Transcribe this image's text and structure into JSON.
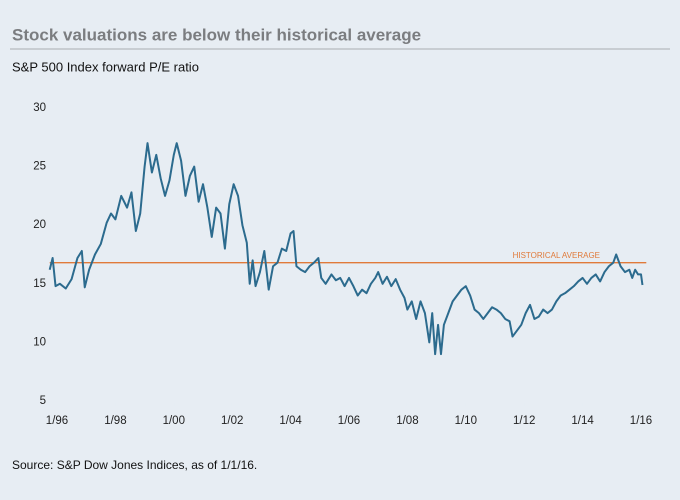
{
  "chart_data": {
    "type": "line",
    "title": "Stock valuations are below their historical average",
    "subtitle": "S&P 500 Index forward P/E ratio",
    "source": "Source: S&P Dow Jones Indices, as of 1/1/16.",
    "color": "#2c6b8e",
    "historical_average": {
      "value": 16.8,
      "label": "HISTORICAL AVERAGE",
      "color": "#e07a3a"
    },
    "xlim": [
      1995.75,
      2016.25
    ],
    "ylim": [
      5,
      30
    ],
    "yticks": [
      5,
      10,
      15,
      20,
      25,
      30
    ],
    "xticks": [
      {
        "value": 1996,
        "label": "1/96"
      },
      {
        "value": 1998,
        "label": "1/98"
      },
      {
        "value": 2000,
        "label": "1/00"
      },
      {
        "value": 2002,
        "label": "1/02"
      },
      {
        "value": 2004,
        "label": "1/04"
      },
      {
        "value": 2006,
        "label": "1/06"
      },
      {
        "value": 2008,
        "label": "1/08"
      },
      {
        "value": 2010,
        "label": "1/10"
      },
      {
        "value": 2012,
        "label": "1/12"
      },
      {
        "value": 2014,
        "label": "1/14"
      },
      {
        "value": 2016,
        "label": "1/16"
      }
    ],
    "grid": false,
    "x": [
      1995.75,
      1995.85,
      1995.95,
      1996.1,
      1996.3,
      1996.5,
      1996.7,
      1996.85,
      1996.95,
      1997.1,
      1997.3,
      1997.5,
      1997.7,
      1997.85,
      1998.0,
      1998.2,
      1998.4,
      1998.55,
      1998.7,
      1998.85,
      1999.0,
      1999.1,
      1999.25,
      1999.4,
      1999.55,
      1999.7,
      1999.85,
      2000.0,
      2000.1,
      2000.25,
      2000.4,
      2000.55,
      2000.7,
      2000.85,
      2001.0,
      2001.15,
      2001.3,
      2001.45,
      2001.6,
      2001.75,
      2001.9,
      2002.05,
      2002.2,
      2002.35,
      2002.5,
      2002.6,
      2002.7,
      2002.8,
      2002.95,
      2003.1,
      2003.25,
      2003.4,
      2003.55,
      2003.7,
      2003.85,
      2004.0,
      2004.1,
      2004.2,
      2004.35,
      2004.5,
      2004.65,
      2004.8,
      2004.95,
      2005.05,
      2005.2,
      2005.4,
      2005.55,
      2005.7,
      2005.85,
      2006.0,
      2006.15,
      2006.3,
      2006.45,
      2006.6,
      2006.75,
      2006.9,
      2007.0,
      2007.15,
      2007.3,
      2007.45,
      2007.6,
      2007.75,
      2007.9,
      2008.0,
      2008.15,
      2008.3,
      2008.45,
      2008.6,
      2008.75,
      2008.85,
      2008.95,
      2009.05,
      2009.15,
      2009.25,
      2009.4,
      2009.55,
      2009.7,
      2009.85,
      2010.0,
      2010.15,
      2010.3,
      2010.45,
      2010.6,
      2010.75,
      2010.9,
      2011.05,
      2011.2,
      2011.35,
      2011.5,
      2011.6,
      2011.75,
      2011.9,
      2012.05,
      2012.2,
      2012.35,
      2012.5,
      2012.65,
      2012.8,
      2012.95,
      2013.1,
      2013.25,
      2013.4,
      2013.55,
      2013.7,
      2013.85,
      2014.0,
      2014.15,
      2014.3,
      2014.45,
      2014.6,
      2014.75,
      2014.9,
      2015.05,
      2015.15,
      2015.3,
      2015.45,
      2015.6,
      2015.7,
      2015.8,
      2015.9,
      2016.0,
      2016.05
    ],
    "values": [
      16.2,
      17.2,
      14.8,
      15.0,
      14.6,
      15.4,
      17.2,
      17.8,
      14.7,
      16.2,
      17.5,
      18.4,
      20.2,
      21.0,
      20.5,
      22.5,
      21.5,
      22.8,
      19.5,
      21.0,
      25.0,
      27.0,
      24.5,
      26.0,
      24.0,
      22.5,
      23.8,
      26.0,
      27.0,
      25.5,
      22.5,
      24.2,
      25.0,
      22.0,
      23.5,
      21.5,
      19.0,
      21.5,
      21.0,
      18.0,
      21.8,
      23.5,
      22.5,
      20.0,
      18.5,
      15.0,
      17.0,
      14.8,
      16.0,
      17.8,
      14.5,
      16.5,
      16.8,
      18.0,
      17.8,
      19.3,
      19.5,
      16.5,
      16.2,
      16.0,
      16.5,
      16.8,
      17.2,
      15.5,
      15.0,
      15.8,
      15.3,
      15.5,
      14.8,
      15.5,
      14.8,
      14.0,
      14.5,
      14.2,
      15.0,
      15.5,
      16.0,
      15.0,
      15.6,
      14.8,
      15.4,
      14.5,
      13.8,
      12.8,
      13.5,
      12.0,
      13.5,
      12.5,
      10.0,
      12.5,
      9.0,
      11.5,
      9.0,
      11.5,
      12.5,
      13.5,
      14.0,
      14.5,
      14.8,
      14.0,
      12.8,
      12.5,
      12.0,
      12.5,
      13.0,
      12.8,
      12.5,
      12.0,
      11.8,
      10.5,
      11.0,
      11.5,
      12.5,
      13.2,
      12.0,
      12.2,
      12.8,
      12.5,
      12.8,
      13.5,
      14.0,
      14.2,
      14.5,
      14.8,
      15.2,
      15.5,
      15.0,
      15.5,
      15.8,
      15.2,
      16.0,
      16.5,
      16.8,
      17.5,
      16.5,
      16.0,
      16.2,
      15.5,
      16.2,
      15.8,
      15.8,
      14.9
    ]
  }
}
